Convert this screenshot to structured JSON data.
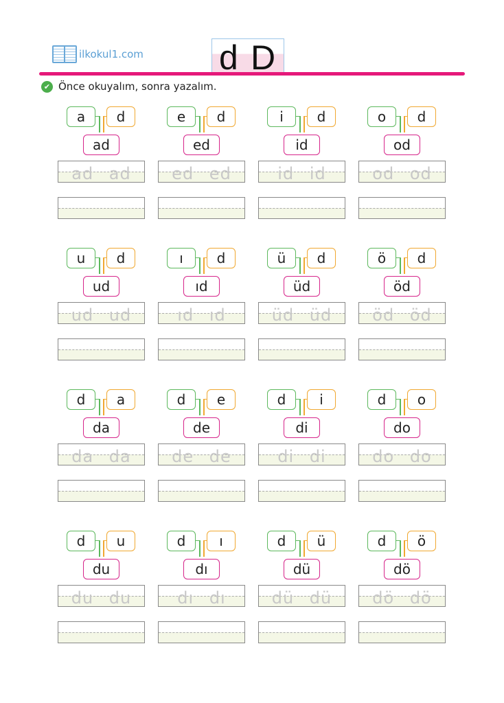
{
  "header": {
    "logo_text": "ilkokul1.com",
    "letter_lower": "d",
    "letter_upper": "D"
  },
  "instruction": "Önce okuyalım, sonra yazalım.",
  "colors": {
    "accent": "#e5197a",
    "first_box": "#5cb85c",
    "second_box": "#f0a830",
    "result_box": "#d6248a"
  },
  "exercises": [
    {
      "a": "a",
      "b": "d",
      "r": "ad",
      "trace": "ad ad"
    },
    {
      "a": "e",
      "b": "d",
      "r": "ed",
      "trace": "ed ed"
    },
    {
      "a": "i",
      "b": "d",
      "r": "id",
      "trace": "id id"
    },
    {
      "a": "o",
      "b": "d",
      "r": "od",
      "trace": "od od"
    },
    {
      "a": "u",
      "b": "d",
      "r": "ud",
      "trace": "ud ud"
    },
    {
      "a": "ı",
      "b": "d",
      "r": "ıd",
      "trace": "ıd ıd"
    },
    {
      "a": "ü",
      "b": "d",
      "r": "üd",
      "trace": "üd üd"
    },
    {
      "a": "ö",
      "b": "d",
      "r": "öd",
      "trace": "öd öd"
    },
    {
      "a": "d",
      "b": "a",
      "r": "da",
      "trace": "da da"
    },
    {
      "a": "d",
      "b": "e",
      "r": "de",
      "trace": "de de"
    },
    {
      "a": "d",
      "b": "i",
      "r": "di",
      "trace": "di di"
    },
    {
      "a": "d",
      "b": "o",
      "r": "do",
      "trace": "do do"
    },
    {
      "a": "d",
      "b": "u",
      "r": "du",
      "trace": "du du"
    },
    {
      "a": "d",
      "b": "ı",
      "r": "dı",
      "trace": "dı dı"
    },
    {
      "a": "d",
      "b": "ü",
      "r": "dü",
      "trace": "dü dü"
    },
    {
      "a": "d",
      "b": "ö",
      "r": "dö",
      "trace": "dö dö"
    }
  ]
}
